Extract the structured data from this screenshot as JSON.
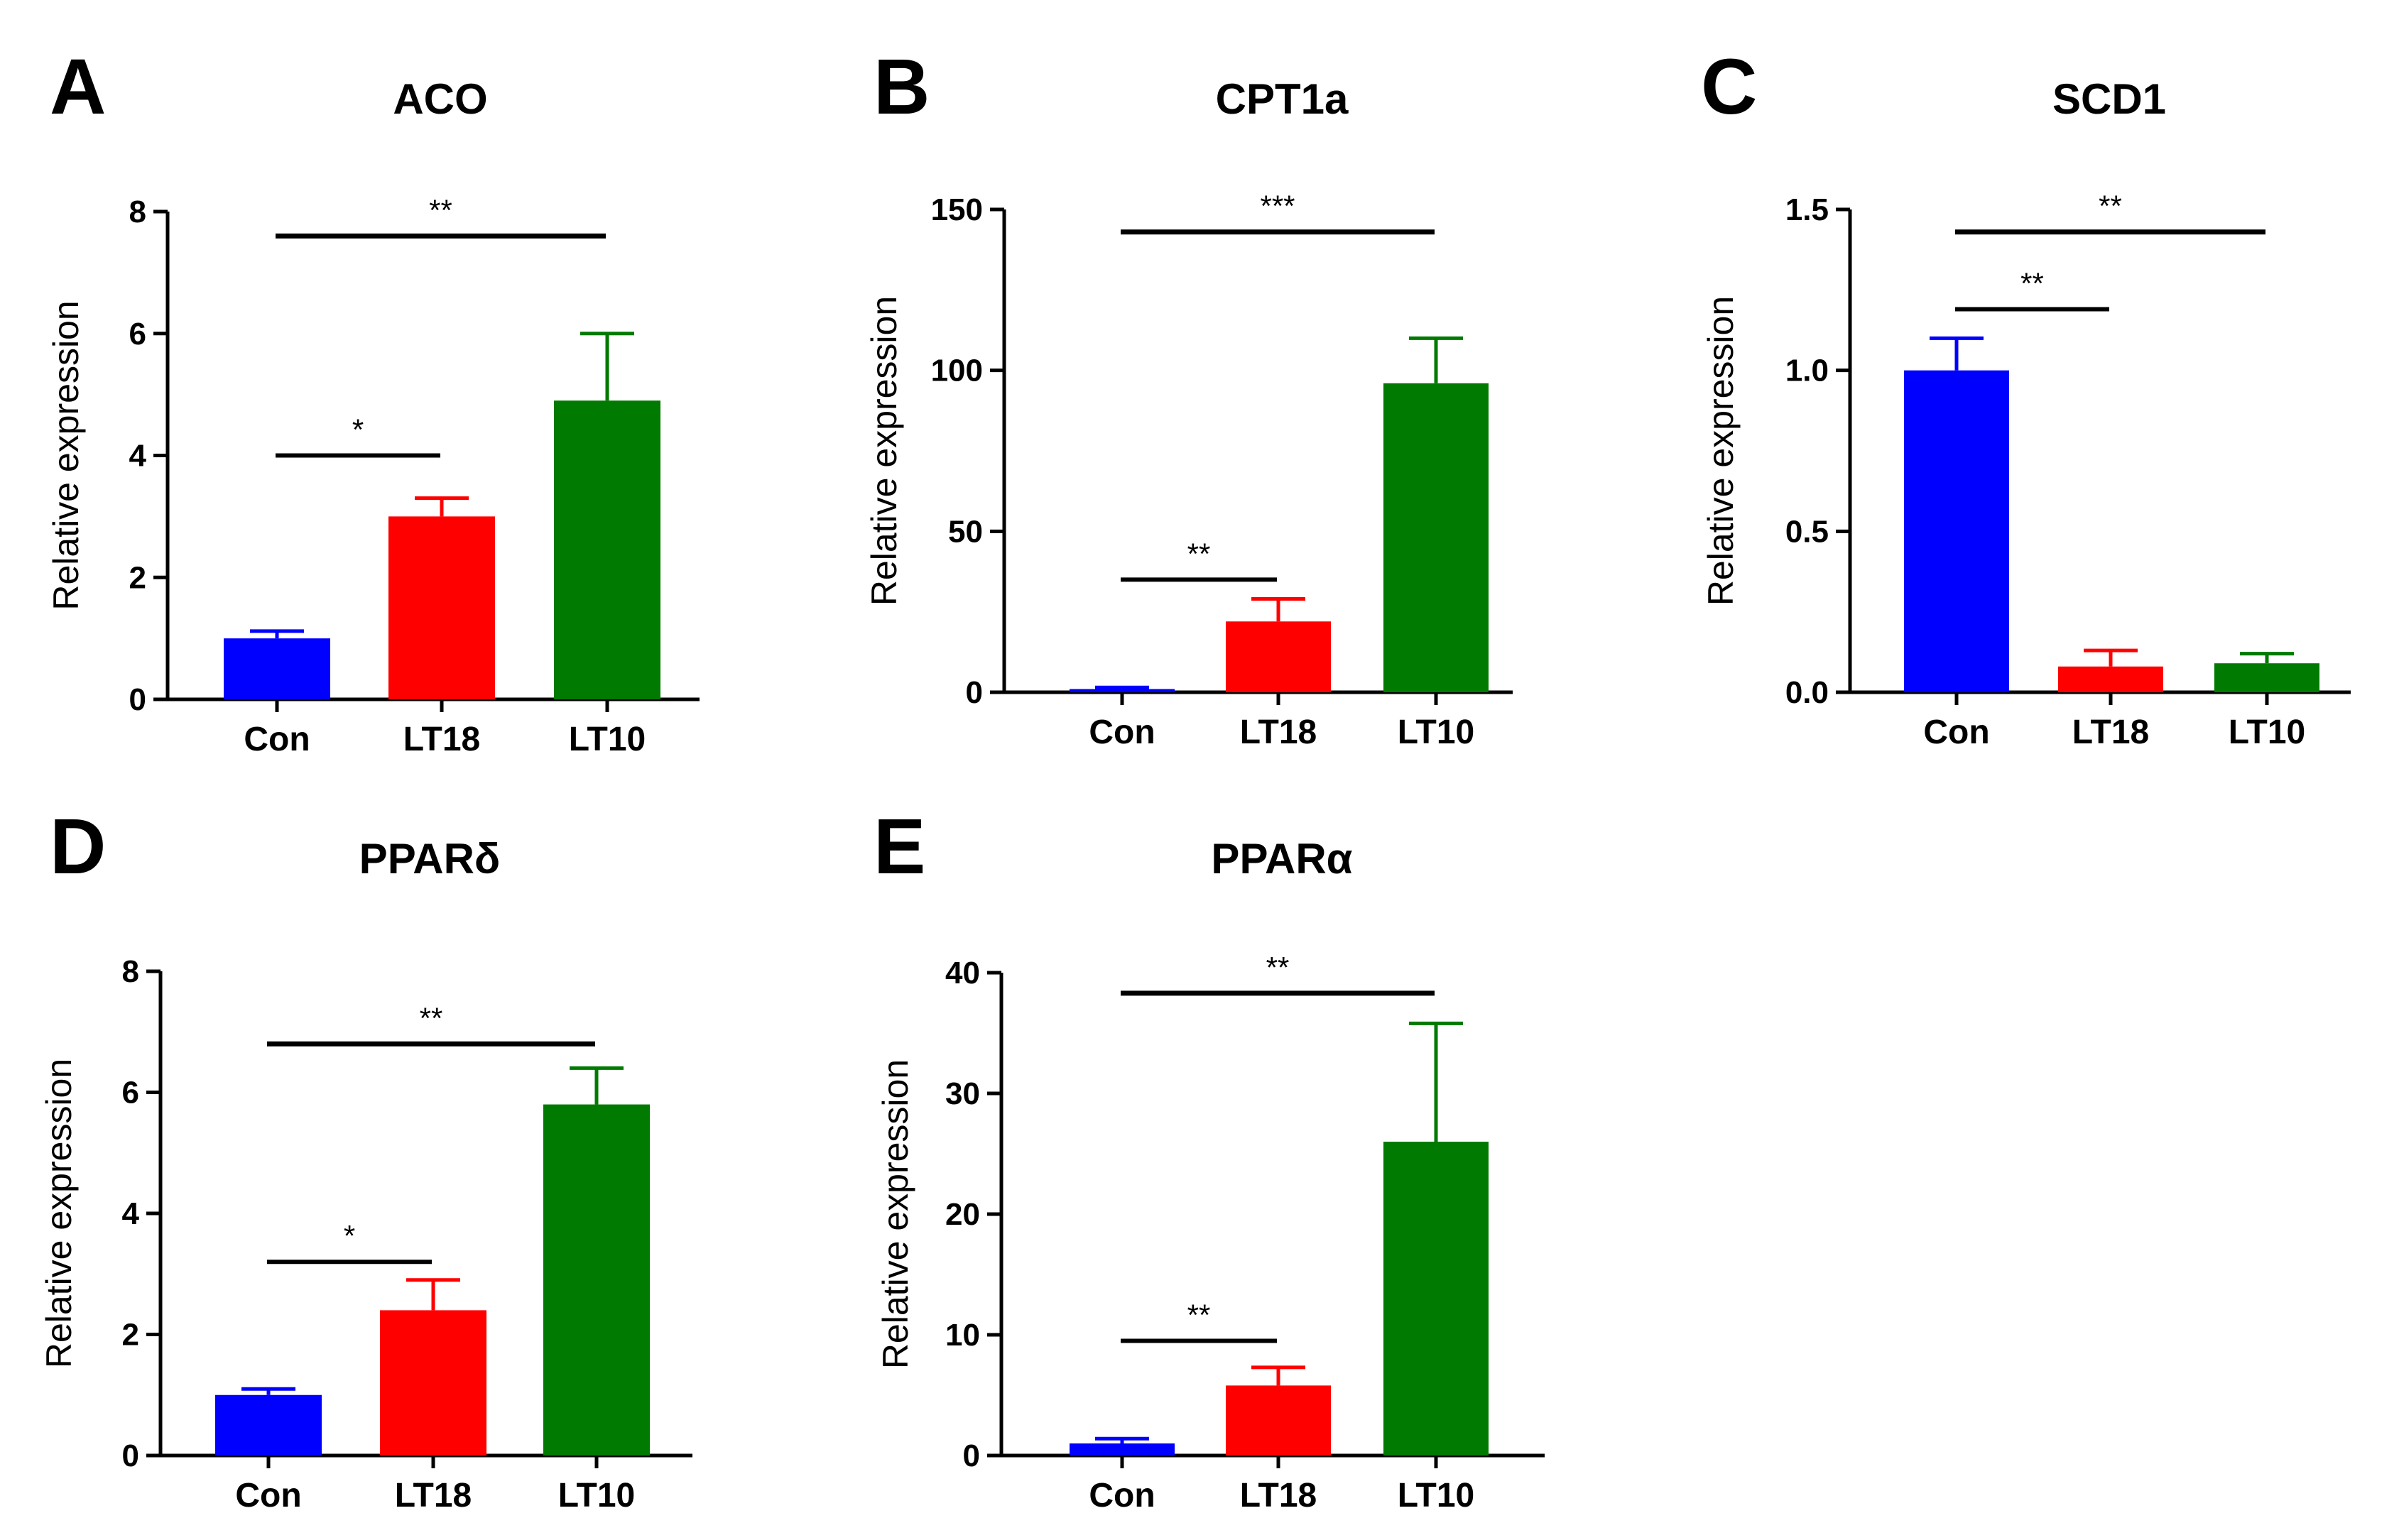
{
  "colors": {
    "Con": "#0000ff",
    "LT18": "#ff0000",
    "LT10": "#007a00",
    "axis": "#000000"
  },
  "chart_data": [
    {
      "panel": "A",
      "type": "bar",
      "title": "ACO",
      "xlabel": "",
      "ylabel": "Relative expression",
      "categories": [
        "Con",
        "LT18",
        "LT10"
      ],
      "values": [
        1.0,
        3.0,
        4.9
      ],
      "errors": [
        0.12,
        0.3,
        1.1
      ],
      "ylim": [
        0,
        8
      ],
      "yticks": [
        0,
        2,
        4,
        6,
        8
      ],
      "ytick_labels": [
        "0",
        "2",
        "4",
        "6",
        "8"
      ],
      "significance": [
        {
          "from": "Con",
          "to": "LT18",
          "level": 4.0,
          "label": "*"
        },
        {
          "from": "Con",
          "to": "LT10",
          "level": 7.6,
          "label": "**"
        }
      ]
    },
    {
      "panel": "B",
      "type": "bar",
      "title": "CPT1a",
      "xlabel": "",
      "ylabel": "Relative expression",
      "categories": [
        "Con",
        "LT18",
        "LT10"
      ],
      "values": [
        1,
        22,
        96
      ],
      "errors": [
        0.5,
        7,
        14
      ],
      "ylim": [
        0,
        150
      ],
      "yticks": [
        0,
        50,
        100,
        150
      ],
      "ytick_labels": [
        "0",
        "50",
        "100",
        "150"
      ],
      "significance": [
        {
          "from": "Con",
          "to": "LT18",
          "level": 35,
          "label": "**"
        },
        {
          "from": "Con",
          "to": "LT10",
          "level": 143,
          "label": "***"
        }
      ]
    },
    {
      "panel": "C",
      "type": "bar",
      "title": "SCD1",
      "xlabel": "",
      "ylabel": "Relative expression",
      "categories": [
        "Con",
        "LT18",
        "LT10"
      ],
      "values": [
        1.0,
        0.08,
        0.09
      ],
      "errors": [
        0.1,
        0.05,
        0.03
      ],
      "ylim": [
        0,
        1.5
      ],
      "yticks": [
        0,
        0.5,
        1.0,
        1.5
      ],
      "ytick_labels": [
        "0.0",
        "0.5",
        "1.0",
        "1.5"
      ],
      "significance": [
        {
          "from": "Con",
          "to": "LT18",
          "level": 1.19,
          "label": "**"
        },
        {
          "from": "Con",
          "to": "LT10",
          "level": 1.43,
          "label": "**"
        }
      ]
    },
    {
      "panel": "D",
      "type": "bar",
      "title": "PPARδ",
      "xlabel": "",
      "ylabel": "Relative expression",
      "categories": [
        "Con",
        "LT18",
        "LT10"
      ],
      "values": [
        1.0,
        2.4,
        5.8
      ],
      "errors": [
        0.1,
        0.5,
        0.6
      ],
      "ylim": [
        0,
        8
      ],
      "yticks": [
        0,
        2,
        4,
        6,
        8
      ],
      "ytick_labels": [
        "0",
        "2",
        "4",
        "6",
        "8"
      ],
      "significance": [
        {
          "from": "Con",
          "to": "LT18",
          "level": 3.2,
          "label": "*"
        },
        {
          "from": "Con",
          "to": "LT10",
          "level": 6.8,
          "label": "**"
        }
      ]
    },
    {
      "panel": "E",
      "type": "bar",
      "title": "PPARα",
      "xlabel": "",
      "ylabel": "Relative expression",
      "categories": [
        "Con",
        "LT18",
        "LT10"
      ],
      "values": [
        1,
        5.8,
        26
      ],
      "errors": [
        0.4,
        1.5,
        9.8
      ],
      "ylim": [
        0,
        40
      ],
      "yticks": [
        0,
        10,
        20,
        30,
        40
      ],
      "ytick_labels": [
        "0",
        "10",
        "20",
        "30",
        "40"
      ],
      "significance": [
        {
          "from": "Con",
          "to": "LT18",
          "level": 9.5,
          "label": "**"
        },
        {
          "from": "Con",
          "to": "LT10",
          "level": 38.3,
          "label": "**"
        }
      ]
    }
  ]
}
